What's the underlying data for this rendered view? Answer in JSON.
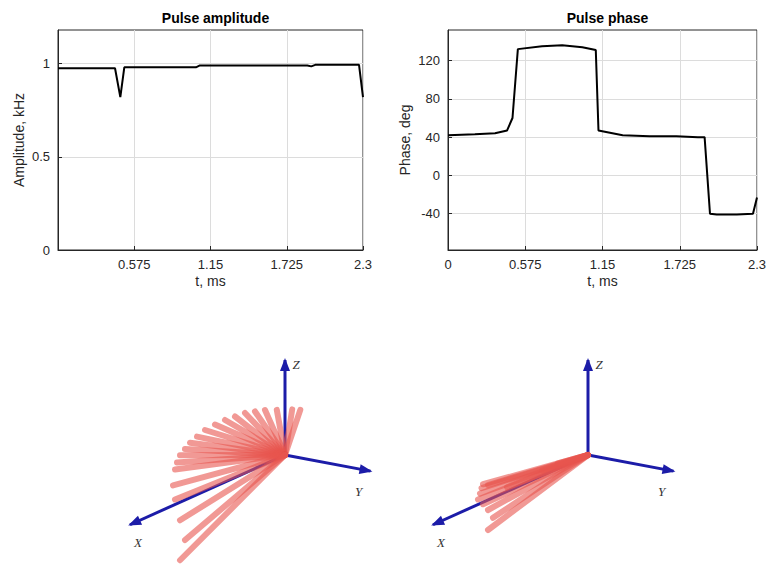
{
  "chart_data": [
    {
      "type": "line",
      "title": "Pulse amplitude",
      "x_label": "t, ms",
      "y_label": "Amplitude, kHz",
      "x": [
        0,
        0.43,
        0.47,
        0.5,
        0.8,
        1.04,
        1.07,
        1.5,
        1.88,
        1.91,
        1.94,
        2.27,
        2.3
      ],
      "series": [
        {
          "name": "Amplitude",
          "color": "#000000",
          "values": [
            0.975,
            0.975,
            0.82,
            0.98,
            0.98,
            0.98,
            0.99,
            0.99,
            0.99,
            0.985,
            0.993,
            0.993,
            0.82
          ]
        }
      ],
      "xlim": [
        0,
        2.3
      ],
      "xticks": [
        0.575,
        1.15,
        1.725,
        2.3
      ],
      "ylim": [
        0,
        1.18
      ],
      "yticks": [
        0,
        0.5,
        1
      ],
      "grid": true
    },
    {
      "type": "line",
      "title": "Pulse phase",
      "x_label": "t, ms",
      "y_label": "Phase, deg",
      "x": [
        0,
        0.2,
        0.35,
        0.44,
        0.48,
        0.52,
        0.7,
        0.85,
        1.0,
        1.1,
        1.12,
        1.3,
        1.5,
        1.7,
        1.86,
        1.91,
        1.95,
        2.0,
        2.15,
        2.27,
        2.3
      ],
      "series": [
        {
          "name": "Phase",
          "color": "#000000",
          "values": [
            42,
            43,
            44,
            47,
            60,
            132,
            135,
            136,
            134,
            131,
            47,
            42,
            41,
            41,
            40,
            40,
            -40,
            -41,
            -41,
            -40,
            -23
          ]
        }
      ],
      "xlim": [
        0,
        2.3
      ],
      "xticks": [
        0,
        0.575,
        1.15,
        1.725,
        2.3
      ],
      "ylim": [
        -78,
        152
      ],
      "yticks": [
        -40,
        0,
        40,
        80,
        120
      ],
      "grid": true
    }
  ],
  "vector_diagrams": [
    {
      "axis_labels": {
        "x": "X",
        "y": "Y",
        "z": "Z"
      },
      "color": "#e8554e",
      "vectors": [
        [
          0,
          0.17,
          0.48
        ],
        [
          0,
          0.08,
          0.47
        ],
        [
          0.1,
          0.02,
          0.5
        ],
        [
          0.2,
          0,
          0.54
        ],
        [
          0.3,
          0,
          0.57
        ],
        [
          0.4,
          0,
          0.6
        ],
        [
          0.5,
          0,
          0.61
        ],
        [
          0.6,
          0,
          0.62
        ],
        [
          0.7,
          0,
          0.62
        ],
        [
          0.8,
          0,
          0.61
        ],
        [
          0.88,
          0,
          0.58
        ],
        [
          0.95,
          0,
          0.55
        ],
        [
          1.0,
          0,
          0.51
        ],
        [
          1.05,
          0,
          0.47
        ],
        [
          1.08,
          0,
          0.41
        ],
        [
          1.1,
          0,
          0.35
        ],
        [
          1.12,
          0,
          0.2
        ],
        [
          1.1,
          0,
          0.05
        ],
        [
          1.05,
          0,
          -0.18
        ],
        [
          1.0,
          0,
          -0.4
        ],
        [
          1.05,
          0,
          -0.58
        ]
      ]
    },
    {
      "axis_labels": {
        "x": "X",
        "y": "Y",
        "z": "Z"
      },
      "color": "#e8554e",
      "vectors": [
        [
          1.0,
          0,
          0.15
        ],
        [
          1.05,
          0,
          0.18
        ],
        [
          1.08,
          0,
          0.1
        ],
        [
          1.1,
          0,
          0.05
        ],
        [
          1.05,
          0,
          -0.02
        ],
        [
          1.0,
          0,
          -0.1
        ],
        [
          0.95,
          0,
          -0.2
        ],
        [
          1.0,
          0,
          -0.3
        ],
        [
          0.9,
          0.1,
          0.1
        ],
        [
          1.02,
          -0.05,
          0.12
        ],
        [
          0.3,
          0,
          0.05
        ],
        [
          0.5,
          0.05,
          0.08
        ]
      ]
    }
  ]
}
